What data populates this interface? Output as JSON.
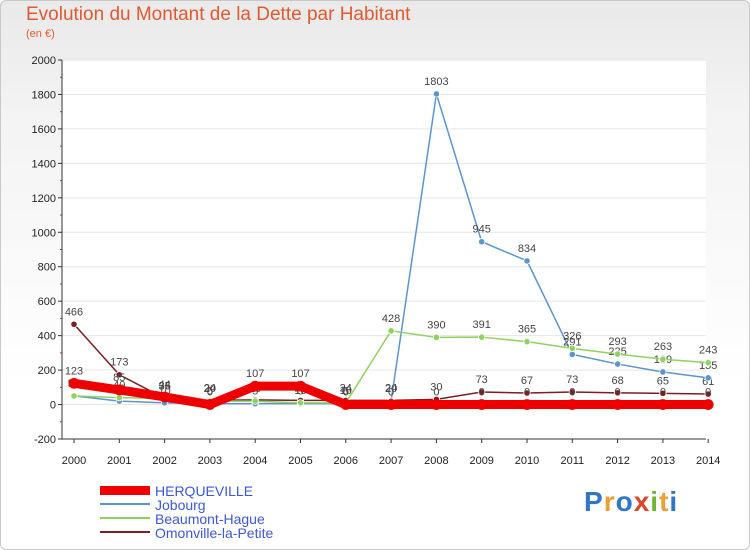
{
  "header": {
    "title": "Evolution du Montant de la Dette par Habitant",
    "subtitle": "(en €)"
  },
  "colors": {
    "title": "#e05a30",
    "legend_text": "#3b58d8",
    "axis": "#333333",
    "grid": "#e6e6e6",
    "value_label": "#444444"
  },
  "brand": {
    "letters": [
      "P",
      "r",
      "o",
      "x",
      "i",
      "t",
      "i"
    ],
    "letter_colors": [
      "#2f76c9",
      "#e8a13a",
      "#2f76c9",
      "#d94a2a",
      "#6fb33a",
      "#e8a13a",
      "#2f76c9"
    ]
  },
  "chart_data": {
    "type": "line",
    "title": "Evolution du Montant de la Dette par Habitant",
    "subtitle": "(en €)",
    "xlabel": "",
    "ylabel": "",
    "x": [
      2000,
      2001,
      2002,
      2003,
      2004,
      2005,
      2006,
      2007,
      2008,
      2009,
      2010,
      2011,
      2012,
      2013,
      2014
    ],
    "ylim": [
      -200,
      2000
    ],
    "y_ticks": [
      -200,
      0,
      200,
      400,
      600,
      800,
      1000,
      1200,
      1400,
      1600,
      1800,
      2000
    ],
    "y_tick_labels": [
      "-200",
      "0",
      "200",
      "400",
      "600",
      "800",
      "1000",
      "1200",
      "1400",
      "1600",
      "1800",
      "2000"
    ],
    "x_tick_labels": [
      "2000",
      "2001",
      "2002",
      "2003",
      "2004",
      "2005",
      "2006",
      "2007",
      "2008",
      "2009",
      "2010",
      "2011",
      "2012",
      "2013",
      "2014"
    ],
    "grid": "horizontal",
    "legend": "bottom-left",
    "series": [
      {
        "name": "Omonville-la-Petite",
        "color": "#7a1f23",
        "values": [
          466,
          173,
          36,
          24,
          27,
          24,
          24,
          24,
          30,
          73,
          67,
          73,
          68,
          65,
          61
        ],
        "labels": [
          "466",
          "173",
          "36",
          "24",
          "27",
          "24",
          "24",
          "24",
          "30",
          "73",
          "67",
          "73",
          "68",
          "65",
          "61"
        ]
      },
      {
        "name": "Jobourg",
        "color": "#5b95cf",
        "values": [
          50,
          20,
          10,
          5,
          5,
          5,
          5,
          20,
          1803,
          945,
          834,
          291,
          235,
          189,
          155
        ],
        "labels": [
          "50",
          "20",
          "10",
          "5",
          "5",
          "5",
          "5",
          "20",
          "1803",
          "945",
          "834",
          "291",
          "235",
          "189",
          "155"
        ]
      },
      {
        "name": "Beaumont-Hague",
        "color": "#8fd35e",
        "values": [
          50,
          40,
          35,
          20,
          20,
          10,
          10,
          428,
          390,
          391,
          365,
          326,
          293,
          263,
          243
        ],
        "labels": [
          "50",
          "40",
          "35",
          "20",
          "20",
          "10",
          "10",
          "428",
          "390",
          "391",
          "365",
          "326",
          "293",
          "263",
          "243"
        ]
      },
      {
        "name": "HERQUEVILLE",
        "color": "#ee0000",
        "values": [
          123,
          85,
          44,
          0,
          107,
          107,
          0,
          0,
          0,
          0,
          0,
          0,
          0,
          0,
          0
        ],
        "labels": [
          "123",
          "85",
          "44",
          "0",
          "107",
          "107",
          "0",
          "0",
          "0",
          "0",
          "0",
          "0",
          "0",
          "0",
          "0"
        ]
      }
    ]
  }
}
